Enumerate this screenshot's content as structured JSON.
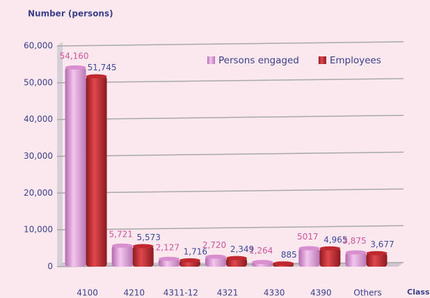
{
  "chart_data": {
    "type": "bar",
    "y_label": "Number (persons)",
    "x_label": "Class",
    "categories": [
      "4100",
      "4210",
      "4311-12",
      "4321",
      "4330",
      "4390",
      "Others"
    ],
    "series": [
      {
        "name": "Persons engaged",
        "color": "#d98ed0",
        "label_color": "#d0559a",
        "values": [
          54160,
          5721,
          2127,
          2720,
          1264,
          5017,
          3875
        ],
        "value_labels": [
          "54,160",
          "5,721",
          "2,127",
          "2,720",
          "1,264",
          "5017",
          "3,875"
        ]
      },
      {
        "name": "Employees",
        "color": "#c0282f",
        "label_color": "#3a4a9a",
        "values": [
          51745,
          5573,
          1716,
          2349,
          885,
          4965,
          3677
        ],
        "value_labels": [
          "51,745",
          "5,573",
          "1,716",
          "2,349",
          "885",
          "4,965",
          "3,677"
        ]
      }
    ],
    "ylim": [
      0,
      60000
    ],
    "yticks": [
      0,
      {
        "value": 10000,
        "label": "10,000"
      },
      {
        "value": 20000,
        "label": "20,000"
      },
      {
        "value": 30000,
        "label": "30,000"
      },
      {
        "value": 40000,
        "label": "40,000"
      },
      {
        "value": 50000,
        "label": "50,000"
      },
      {
        "value": 60000,
        "label": "60,000"
      }
    ],
    "grid": true,
    "legend": "top-right"
  }
}
